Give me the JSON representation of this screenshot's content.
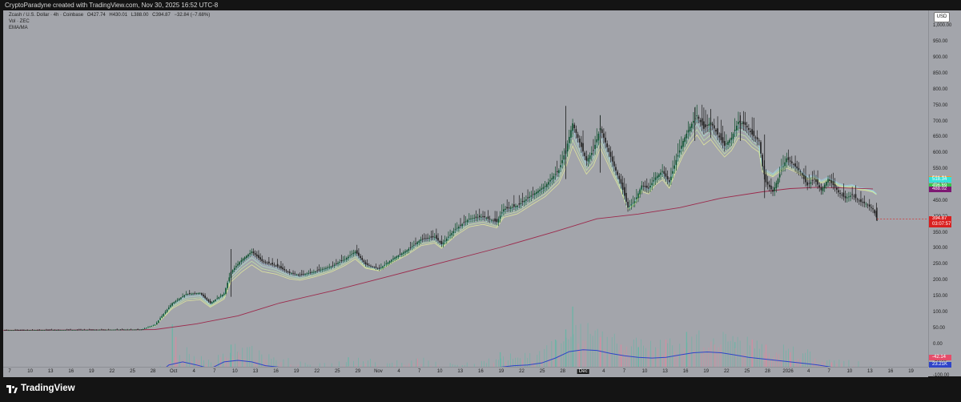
{
  "header": {
    "credit": "CryptoParadyne created with TradingView.com, Nov 30, 2025 16:52 UTC-8"
  },
  "legend": {
    "symbol": "Zcash / U.S. Dollar · 4h · Coinbase",
    "open": "O427.74",
    "high": "H430.01",
    "low": "L388.00",
    "close": "C394.87",
    "change": "−32.84 (−7.68%)",
    "volume": "Vol · ZEC",
    "indicator": "EMA/MA"
  },
  "currency_button": "USD",
  "footer": {
    "brand": "TradingView"
  },
  "colors": {
    "background": "#a3a5ab",
    "candle_up": "#0b4d29",
    "candle_down": "#1c1c1c",
    "ema_ribbon": [
      "#eef59a",
      "#c6f0a6",
      "#a9e6d2",
      "#9fd0ef"
    ],
    "ma": "#9c2a4c",
    "volume_up": "#59b9a4",
    "volume_down": "#e0879e",
    "volume_ma": "#2e44c8"
  },
  "price_badges": [
    {
      "label": "521.21",
      "price": 521.21,
      "color": "#f59a24"
    },
    {
      "label": "518.34",
      "price": 518.34,
      "color": "#34e0d7"
    },
    {
      "label": "496.69",
      "price": 496.69,
      "color": "#39c44c"
    },
    {
      "label": "488.02",
      "price": 488.02,
      "color": "#7d1873"
    },
    {
      "label": "394.87",
      "price": 394.87,
      "color": "#d92020",
      "extra": "03:07:57"
    },
    {
      "label": "-42.14",
      "price": -42.14,
      "color": "#e54d6a"
    },
    {
      "label": "23.21K",
      "price": -63,
      "color": "#2e44c8"
    }
  ],
  "chart_data": {
    "type": "candlestick",
    "symbol": "Zcash / U.S. Dollar",
    "interval": "4h",
    "exchange": "Coinbase",
    "price_axis": {
      "range": [
        -70,
        1050
      ],
      "ticks": [
        1000,
        950,
        900,
        850,
        800,
        750,
        700,
        650,
        600,
        550,
        500,
        450,
        400,
        350,
        300,
        250,
        200,
        150,
        100,
        50,
        0,
        -50,
        -100
      ],
      "tick_labels": [
        "1,000.00",
        "950.00",
        "900.00",
        "850.00",
        "800.00",
        "750.00",
        "700.00",
        "650.00",
        "600.00",
        "550.00",
        "500.00",
        "450.00",
        "400.00",
        "350.00",
        "300.00",
        "250.00",
        "200.00",
        "150.00",
        "100.00",
        "50.00",
        "0.00",
        "-50.00",
        "-100.00"
      ]
    },
    "time_axis": {
      "ticks": [
        "7",
        "10",
        "13",
        "16",
        "19",
        "22",
        "25",
        "28",
        "Oct",
        "4",
        "7",
        "10",
        "13",
        "16",
        "19",
        "22",
        "25",
        "29",
        "Nov",
        "4",
        "7",
        "10",
        "13",
        "16",
        "19",
        "22",
        "25",
        "28",
        "Dec",
        "4",
        "7",
        "10",
        "13",
        "16",
        "19",
        "22",
        "25",
        "28",
        "2026",
        "4",
        "7",
        "10",
        "13",
        "16",
        "19"
      ],
      "range_days": [
        0,
        134
      ]
    },
    "price_path": [
      [
        0,
        45
      ],
      [
        12,
        46
      ],
      [
        20,
        47
      ],
      [
        22,
        62
      ],
      [
        24.5,
        130
      ],
      [
        26.5,
        158
      ],
      [
        28.5,
        162
      ],
      [
        30,
        130
      ],
      [
        32,
        160
      ],
      [
        33,
        228
      ],
      [
        34.5,
        265
      ],
      [
        36,
        292
      ],
      [
        37.5,
        262
      ],
      [
        39.5,
        248
      ],
      [
        41.5,
        225
      ],
      [
        43,
        218
      ],
      [
        45,
        228
      ],
      [
        47.5,
        245
      ],
      [
        49.5,
        268
      ],
      [
        51,
        292
      ],
      [
        52.5,
        252
      ],
      [
        54.5,
        238
      ],
      [
        56.5,
        270
      ],
      [
        58.5,
        296
      ],
      [
        60.5,
        330
      ],
      [
        62.5,
        338
      ],
      [
        63.5,
        315
      ],
      [
        65.5,
        362
      ],
      [
        67.5,
        395
      ],
      [
        69.5,
        402
      ],
      [
        71.5,
        385
      ],
      [
        72.5,
        425
      ],
      [
        74.5,
        436
      ],
      [
        76.5,
        468
      ],
      [
        78.5,
        498
      ],
      [
        80.5,
        548
      ],
      [
        81.5,
        610
      ],
      [
        82.5,
        695
      ],
      [
        83.5,
        635
      ],
      [
        84.5,
        578
      ],
      [
        85.5,
        610
      ],
      [
        86.5,
        680
      ],
      [
        87.5,
        620
      ],
      [
        88.5,
        560
      ],
      [
        89.5,
        505
      ],
      [
        90.5,
        430
      ],
      [
        91.5,
        450
      ],
      [
        92.5,
        500
      ],
      [
        93.5,
        490
      ],
      [
        94.5,
        525
      ],
      [
        95.5,
        545
      ],
      [
        96.5,
        510
      ],
      [
        97.5,
        580
      ],
      [
        98.5,
        640
      ],
      [
        99.5,
        685
      ],
      [
        100.5,
        720
      ],
      [
        101.5,
        678
      ],
      [
        102.5,
        698
      ],
      [
        103.5,
        660
      ],
      [
        104.5,
        625
      ],
      [
        105.5,
        650
      ],
      [
        106.5,
        700
      ],
      [
        107.5,
        690
      ],
      [
        108.5,
        660
      ],
      [
        109.5,
        640
      ],
      [
        110,
        560
      ],
      [
        110.5,
        510
      ],
      [
        111.5,
        480
      ],
      [
        112.5,
        535
      ],
      [
        113.5,
        585
      ],
      [
        114.5,
        565
      ],
      [
        115.5,
        542
      ],
      [
        116,
        520
      ],
      [
        116.5,
        500
      ],
      [
        117.5,
        520
      ],
      [
        118.5,
        485
      ],
      [
        119.5,
        520
      ],
      [
        120.5,
        495
      ],
      [
        121,
        478
      ],
      [
        122,
        460
      ],
      [
        123,
        470
      ],
      [
        124,
        450
      ],
      [
        125,
        442
      ],
      [
        126,
        425
      ],
      [
        126.6,
        394.87
      ]
    ],
    "spikes": [
      {
        "x": 33,
        "high": 300,
        "low": 150
      },
      {
        "x": 81.5,
        "high": 750,
        "low": 520
      },
      {
        "x": 86.5,
        "high": 720,
        "low": 540
      },
      {
        "x": 100.2,
        "high": 745,
        "low": 640
      },
      {
        "x": 102.5,
        "high": 740,
        "low": 650
      },
      {
        "x": 106.8,
        "high": 720,
        "low": 640
      },
      {
        "x": 110.3,
        "high": 660,
        "low": 460
      },
      {
        "x": 126.6,
        "high": 430,
        "low": 388
      }
    ],
    "ma_path": [
      [
        0,
        45
      ],
      [
        18,
        46
      ],
      [
        22,
        47
      ],
      [
        28,
        65
      ],
      [
        34,
        90
      ],
      [
        40,
        130
      ],
      [
        48,
        170
      ],
      [
        56,
        215
      ],
      [
        64,
        260
      ],
      [
        72,
        305
      ],
      [
        80,
        355
      ],
      [
        86,
        395
      ],
      [
        92,
        410
      ],
      [
        98,
        430
      ],
      [
        104,
        460
      ],
      [
        110,
        480
      ],
      [
        114,
        490
      ],
      [
        118,
        494
      ],
      [
        122,
        492
      ],
      [
        126,
        489
      ]
    ],
    "ribbon_offsets": [
      0.78,
      0.84,
      0.9,
      0.95
    ],
    "ribbon_tail": [
      [
        112,
        575
      ],
      [
        116,
        550
      ],
      [
        120,
        528
      ],
      [
        124,
        521
      ]
    ],
    "volume_bars": [
      {
        "x": 24.5,
        "v": 220,
        "up": true
      },
      {
        "x": 25,
        "v": 170,
        "up": false
      },
      {
        "x": 33,
        "v": 140,
        "up": true
      },
      {
        "x": 34,
        "v": 110,
        "up": false
      },
      {
        "x": 50,
        "v": 90,
        "up": true
      },
      {
        "x": 60,
        "v": 85,
        "up": false
      },
      {
        "x": 72,
        "v": 110,
        "up": true
      },
      {
        "x": 80,
        "v": 160,
        "up": true
      },
      {
        "x": 81.5,
        "v": 200,
        "up": true
      },
      {
        "x": 82.5,
        "v": 290,
        "up": true
      },
      {
        "x": 83.5,
        "v": 120,
        "up": false
      },
      {
        "x": 86.5,
        "v": 170,
        "up": false
      },
      {
        "x": 89.5,
        "v": 140,
        "up": false
      },
      {
        "x": 92,
        "v": 130,
        "up": true
      },
      {
        "x": 96,
        "v": 160,
        "up": false
      },
      {
        "x": 99,
        "v": 190,
        "up": true
      },
      {
        "x": 103,
        "v": 140,
        "up": false
      },
      {
        "x": 106,
        "v": 150,
        "up": true
      },
      {
        "x": 108.5,
        "v": 160,
        "up": false
      },
      {
        "x": 110.5,
        "v": 140,
        "up": false
      },
      {
        "x": 114,
        "v": 110,
        "up": false
      },
      {
        "x": 120,
        "v": 70,
        "up": false
      }
    ],
    "volume_ma_path": [
      [
        0,
        4
      ],
      [
        20,
        4
      ],
      [
        22,
        10
      ],
      [
        24,
        40
      ],
      [
        26,
        48
      ],
      [
        28,
        40
      ],
      [
        30,
        30
      ],
      [
        32,
        48
      ],
      [
        34,
        52
      ],
      [
        36,
        48
      ],
      [
        38,
        38
      ],
      [
        40,
        34
      ],
      [
        42,
        30
      ],
      [
        44,
        28
      ],
      [
        46,
        25
      ],
      [
        48,
        26
      ],
      [
        50,
        30
      ],
      [
        52,
        32
      ],
      [
        54,
        28
      ],
      [
        56,
        30
      ],
      [
        58,
        32
      ],
      [
        60,
        33
      ],
      [
        62,
        30
      ],
      [
        64,
        26
      ],
      [
        66,
        24
      ],
      [
        68,
        26
      ],
      [
        70,
        30
      ],
      [
        72,
        34
      ],
      [
        74,
        38
      ],
      [
        76,
        40
      ],
      [
        78,
        45
      ],
      [
        80,
        58
      ],
      [
        82,
        75
      ],
      [
        84,
        80
      ],
      [
        86,
        78
      ],
      [
        88,
        70
      ],
      [
        90,
        64
      ],
      [
        92,
        60
      ],
      [
        94,
        58
      ],
      [
        96,
        60
      ],
      [
        98,
        66
      ],
      [
        100,
        72
      ],
      [
        102,
        74
      ],
      [
        104,
        72
      ],
      [
        106,
        66
      ],
      [
        108,
        60
      ],
      [
        110,
        56
      ],
      [
        112,
        52
      ],
      [
        114,
        48
      ],
      [
        116,
        44
      ],
      [
        118,
        40
      ],
      [
        120,
        34
      ],
      [
        122,
        30
      ],
      [
        124,
        26
      ],
      [
        126,
        23
      ]
    ]
  }
}
